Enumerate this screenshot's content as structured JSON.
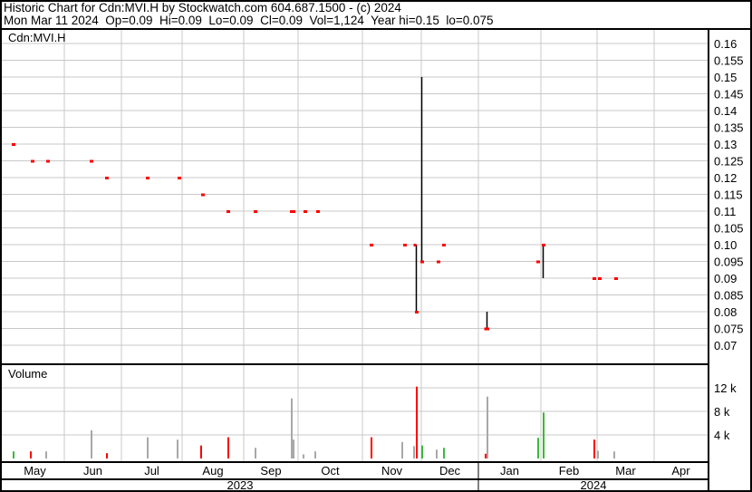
{
  "header": {
    "line1": "Historic Chart for Cdn:MVI.H by Stockwatch.com 604.687.1500 - (c) 2024",
    "line2": "Mon Mar 11 2024  Op=0.09  Hi=0.09  Lo=0.09  Cl=0.09  Vol=1,124  Year hi=0.15  lo=0.075"
  },
  "colors": {
    "up": "#3cb83c",
    "down": "#ff0000",
    "unchanged": "#a8a8a8",
    "bar": "#000000",
    "grid": "#c8c8c8"
  },
  "chart_data": [
    {
      "type": "bar",
      "title": "Cdn:MVI.H",
      "subtype": "ohlc",
      "ylim": [
        0.065,
        0.165
      ],
      "yticks": [
        "0.16",
        "0.155",
        "0.15",
        "0.145",
        "0.14",
        "0.135",
        "0.13",
        "0.125",
        "0.12",
        "0.115",
        "0.11",
        "0.105",
        "0.10",
        "0.095",
        "0.09",
        "0.085",
        "0.08",
        "0.075",
        "0.07"
      ],
      "grid": true,
      "points": [
        {
          "date": "2023-05-05",
          "hi": 0.13,
          "lo": 0.13,
          "cl": 0.13
        },
        {
          "date": "2023-05-15",
          "hi": 0.125,
          "lo": 0.125,
          "cl": 0.125
        },
        {
          "date": "2023-05-23",
          "hi": 0.125,
          "lo": 0.125,
          "cl": 0.125
        },
        {
          "date": "2023-06-15",
          "hi": 0.125,
          "lo": 0.125,
          "cl": 0.125
        },
        {
          "date": "2023-06-23",
          "hi": 0.12,
          "lo": 0.12,
          "cl": 0.12
        },
        {
          "date": "2023-07-14",
          "hi": 0.12,
          "lo": 0.12,
          "cl": 0.12
        },
        {
          "date": "2023-07-30",
          "hi": 0.12,
          "lo": 0.12,
          "cl": 0.12
        },
        {
          "date": "2023-08-11",
          "hi": 0.115,
          "lo": 0.115,
          "cl": 0.115
        },
        {
          "date": "2023-08-24",
          "hi": 0.11,
          "lo": 0.11,
          "cl": 0.11
        },
        {
          "date": "2023-09-07",
          "hi": 0.11,
          "lo": 0.11,
          "cl": 0.11
        },
        {
          "date": "2023-09-27",
          "hi": 0.11,
          "lo": 0.11,
          "cl": 0.11
        },
        {
          "date": "2023-09-28",
          "hi": 0.11,
          "lo": 0.11,
          "cl": 0.11
        },
        {
          "date": "2023-10-04",
          "hi": 0.11,
          "lo": 0.11,
          "cl": 0.11
        },
        {
          "date": "2023-10-10",
          "hi": 0.11,
          "lo": 0.11,
          "cl": 0.11
        },
        {
          "date": "2023-11-05",
          "hi": 0.1,
          "lo": 0.1,
          "cl": 0.1
        },
        {
          "date": "2023-11-22",
          "hi": 0.1,
          "lo": 0.1,
          "cl": 0.1
        },
        {
          "date": "2023-11-28",
          "hi": 0.1,
          "lo": 0.08,
          "cl": 0.08,
          "op": 0.1
        },
        {
          "date": "2023-12-01",
          "hi": 0.15,
          "lo": 0.095,
          "cl": 0.095
        },
        {
          "date": "2023-12-10",
          "hi": 0.095,
          "lo": 0.095,
          "cl": 0.095
        },
        {
          "date": "2023-12-13",
          "hi": 0.1,
          "lo": 0.1,
          "cl": 0.1
        },
        {
          "date": "2024-01-05",
          "hi": 0.08,
          "lo": 0.075,
          "cl": 0.075,
          "op": 0.075
        },
        {
          "date": "2024-01-30",
          "hi": 0.095,
          "lo": 0.095,
          "cl": 0.095
        },
        {
          "date": "2024-02-02",
          "hi": 0.1,
          "lo": 0.09,
          "cl": 0.1
        },
        {
          "date": "2024-02-28",
          "hi": 0.09,
          "lo": 0.09,
          "cl": 0.09
        },
        {
          "date": "2024-03-02",
          "hi": 0.09,
          "lo": 0.09,
          "cl": 0.09
        },
        {
          "date": "2024-03-11",
          "hi": 0.09,
          "lo": 0.09,
          "cl": 0.09
        }
      ]
    },
    {
      "type": "bar",
      "title": "Volume",
      "ylim": [
        0,
        14000
      ],
      "yticks": [
        {
          "v": 4000,
          "label": "4 k"
        },
        {
          "v": 8000,
          "label": "8 k"
        },
        {
          "v": 12000,
          "label": "12 k"
        }
      ],
      "grid": true,
      "bars": [
        {
          "date": "2023-05-05",
          "v": 1200,
          "c": "up"
        },
        {
          "date": "2023-05-14",
          "v": 1200,
          "c": "down"
        },
        {
          "date": "2023-05-22",
          "v": 1200,
          "c": "unchanged"
        },
        {
          "date": "2023-06-15",
          "v": 4800,
          "c": "unchanged"
        },
        {
          "date": "2023-06-23",
          "v": 900,
          "c": "down"
        },
        {
          "date": "2023-07-14",
          "v": 3600,
          "c": "unchanged"
        },
        {
          "date": "2023-07-29",
          "v": 3200,
          "c": "unchanged"
        },
        {
          "date": "2023-08-10",
          "v": 2200,
          "c": "down"
        },
        {
          "date": "2023-08-24",
          "v": 3600,
          "c": "down"
        },
        {
          "date": "2023-09-07",
          "v": 1800,
          "c": "unchanged"
        },
        {
          "date": "2023-09-27",
          "v": 10200,
          "c": "unchanged"
        },
        {
          "date": "2023-09-28",
          "v": 3200,
          "c": "unchanged"
        },
        {
          "date": "2023-10-03",
          "v": 700,
          "c": "unchanged"
        },
        {
          "date": "2023-10-09",
          "v": 1200,
          "c": "unchanged"
        },
        {
          "date": "2023-11-05",
          "v": 3600,
          "c": "down"
        },
        {
          "date": "2023-11-21",
          "v": 2800,
          "c": "unchanged"
        },
        {
          "date": "2023-11-27",
          "v": 2100,
          "c": "unchanged"
        },
        {
          "date": "2023-11-28",
          "v": 12200,
          "c": "down"
        },
        {
          "date": "2023-12-01",
          "v": 2200,
          "c": "up"
        },
        {
          "date": "2023-12-09",
          "v": 1500,
          "c": "unchanged"
        },
        {
          "date": "2023-12-13",
          "v": 1800,
          "c": "up"
        },
        {
          "date": "2024-01-04",
          "v": 800,
          "c": "down"
        },
        {
          "date": "2024-01-05",
          "v": 10500,
          "c": "unchanged"
        },
        {
          "date": "2024-01-30",
          "v": 3500,
          "c": "up"
        },
        {
          "date": "2024-02-02",
          "v": 7800,
          "c": "up"
        },
        {
          "date": "2024-02-28",
          "v": 3200,
          "c": "down"
        },
        {
          "date": "2024-03-01",
          "v": 1300,
          "c": "unchanged"
        },
        {
          "date": "2024-03-10",
          "v": 1200,
          "c": "unchanged"
        }
      ]
    }
  ],
  "xaxis": {
    "months": [
      "May",
      "Jun",
      "Jul",
      "Aug",
      "Sep",
      "Oct",
      "Nov",
      "Dec",
      "Jan",
      "Feb",
      "Mar",
      "Apr"
    ],
    "years": [
      "2023",
      "2024"
    ]
  }
}
